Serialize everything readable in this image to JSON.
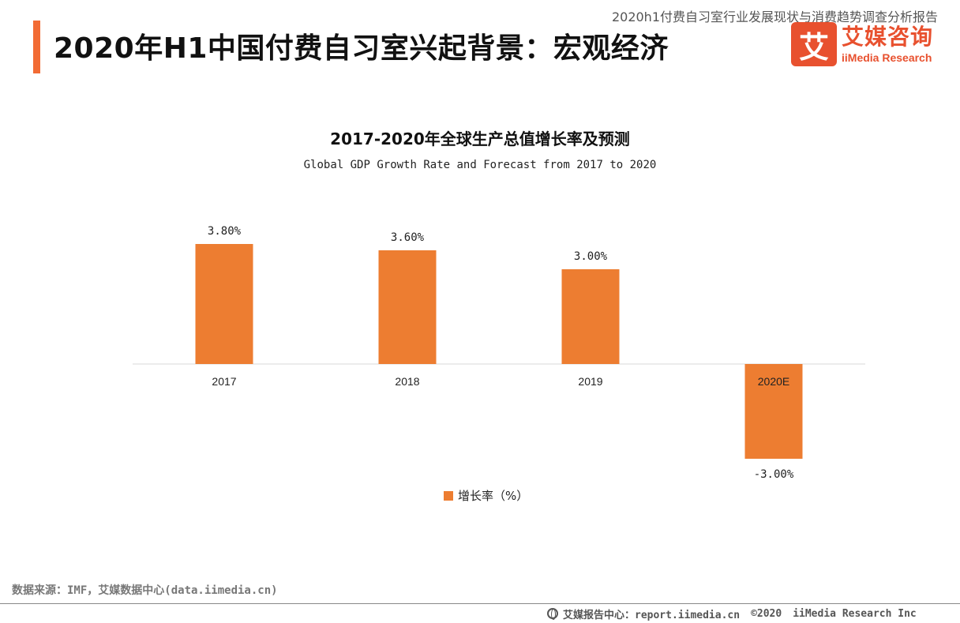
{
  "header": {
    "report_name": "2020h1付费自习室行业发展现状与消费趋势调查分析报告",
    "page_title": "2020年H1中国付费自习室兴起背景：宏观经济"
  },
  "logo": {
    "mark": "艾",
    "cn": "艾媒咨询",
    "en": "iiMedia Research"
  },
  "colors": {
    "accent": "#f26b34",
    "bar": "#ed7d31",
    "brand": "#e8512f"
  },
  "chart_data": {
    "type": "bar",
    "title": "2017-2020年全球生产总值增长率及预测",
    "subtitle": "Global GDP Growth Rate and Forecast from 2017 to 2020",
    "categories": [
      "2017",
      "2018",
      "2019",
      "2020E"
    ],
    "series": [
      {
        "name": "增长率（%）",
        "values": [
          3.8,
          3.6,
          3.0,
          -3.0
        ],
        "labels": [
          "3.80%",
          "3.60%",
          "3.00%",
          "-3.00%"
        ]
      }
    ],
    "ylim": [
      -3.0,
      3.8
    ],
    "grid": false,
    "legend": "bottom"
  },
  "footer": {
    "source": "数据来源：IMF，艾媒数据中心(data.iimedia.cn)",
    "center": "艾媒报告中心：report.iimedia.cn",
    "copyright": "©2020",
    "company": "iiMedia Research Inc"
  }
}
